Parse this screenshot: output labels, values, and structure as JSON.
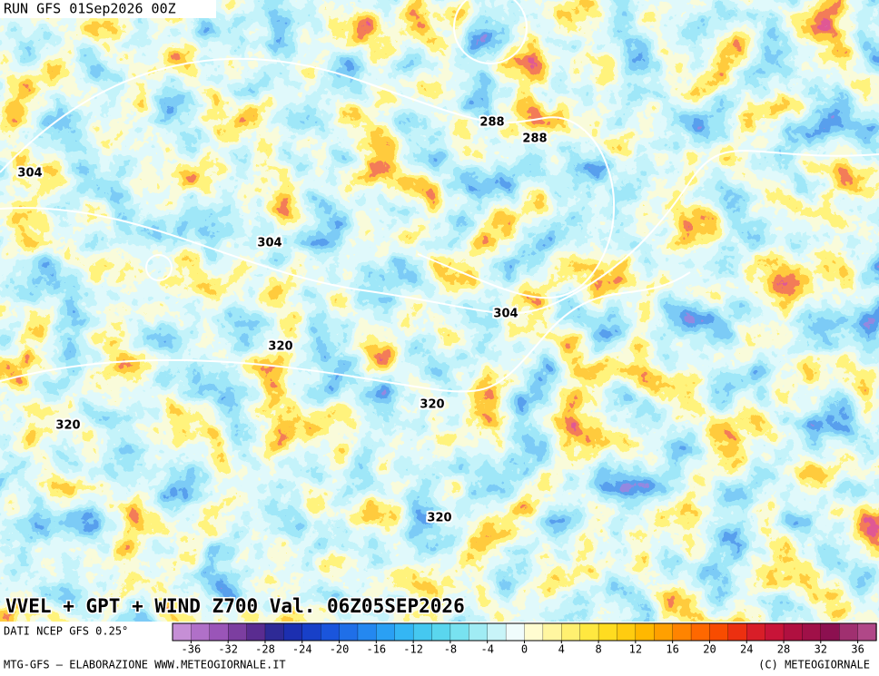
{
  "header": {
    "run": "RUN GFS 01Sep2026 00Z"
  },
  "map": {
    "title": "VVEL + GPT + WIND Z700 Val. 06Z05SEP2026",
    "contour_labels": [
      288,
      288,
      304,
      304,
      304,
      320,
      320,
      320,
      320
    ]
  },
  "legend": {
    "source": "DATI NCEP GFS 0.25°",
    "lim": [
      -38,
      38
    ],
    "ticks": [
      -36,
      -32,
      -28,
      -24,
      -20,
      -16,
      -12,
      -8,
      -4,
      0,
      4,
      8,
      12,
      16,
      20,
      24,
      28,
      32,
      36
    ],
    "colors": [
      "#c68fd6",
      "#b070c8",
      "#9a55b8",
      "#7c3ea0",
      "#5a2c90",
      "#2e2a96",
      "#1c2fb0",
      "#1840c8",
      "#1a55dc",
      "#1f6fe8",
      "#2488f0",
      "#2aa0f4",
      "#34b6f4",
      "#45c8f0",
      "#5ad6ee",
      "#78e2f0",
      "#a0ecf4",
      "#c8f4f8",
      "#f0fcfc",
      "#fffcd0",
      "#fff6a0",
      "#fff070",
      "#ffe840",
      "#ffdc20",
      "#ffcc10",
      "#ffb800",
      "#ffa000",
      "#ff8400",
      "#ff6800",
      "#f84c00",
      "#ec3010",
      "#d81e28",
      "#c81438",
      "#b01040",
      "#a01048",
      "#8c1050",
      "#a03070",
      "#b04888"
    ]
  },
  "footer": {
    "left": "MTG-GFS — ELABORAZIONE WWW.METEOGIORNALE.IT",
    "right": "(C) METEOGIORNALE"
  }
}
